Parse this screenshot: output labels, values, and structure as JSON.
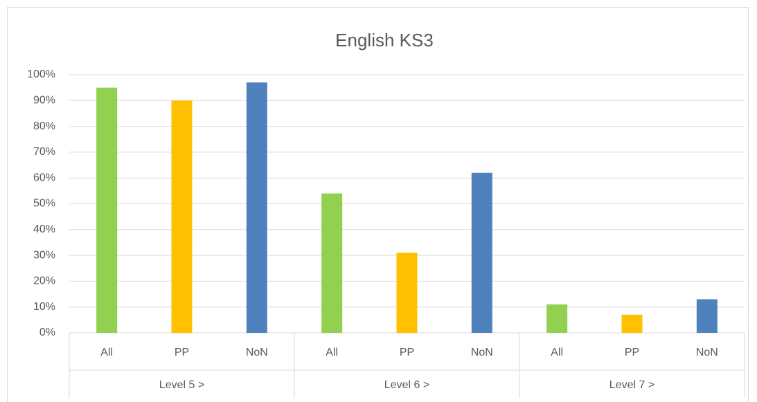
{
  "chart_data": {
    "type": "bar",
    "title": "English KS3",
    "groups": [
      {
        "name": "Level 5 >",
        "categories": [
          "All",
          "PP",
          "NoN"
        ],
        "values": [
          95,
          90,
          97
        ]
      },
      {
        "name": "Level 6 >",
        "categories": [
          "All",
          "PP",
          "NoN"
        ],
        "values": [
          54,
          31,
          62
        ]
      },
      {
        "name": "Level 7 >",
        "categories": [
          "All",
          "PP",
          "NoN"
        ],
        "values": [
          11,
          7,
          13
        ]
      }
    ],
    "colors": [
      "#92d050",
      "#ffc000",
      "#4f81bd"
    ],
    "ylim": [
      0,
      100
    ],
    "yticks": [
      {
        "value": 0,
        "label": "0%"
      },
      {
        "value": 10,
        "label": "10%"
      },
      {
        "value": 20,
        "label": "20%"
      },
      {
        "value": 30,
        "label": "30%"
      },
      {
        "value": 40,
        "label": "40%"
      },
      {
        "value": 50,
        "label": "50%"
      },
      {
        "value": 60,
        "label": "60%"
      },
      {
        "value": 70,
        "label": "70%"
      },
      {
        "value": 80,
        "label": "80%"
      },
      {
        "value": 90,
        "label": "90%"
      },
      {
        "value": 100,
        "label": "100%"
      }
    ],
    "grid": true
  }
}
